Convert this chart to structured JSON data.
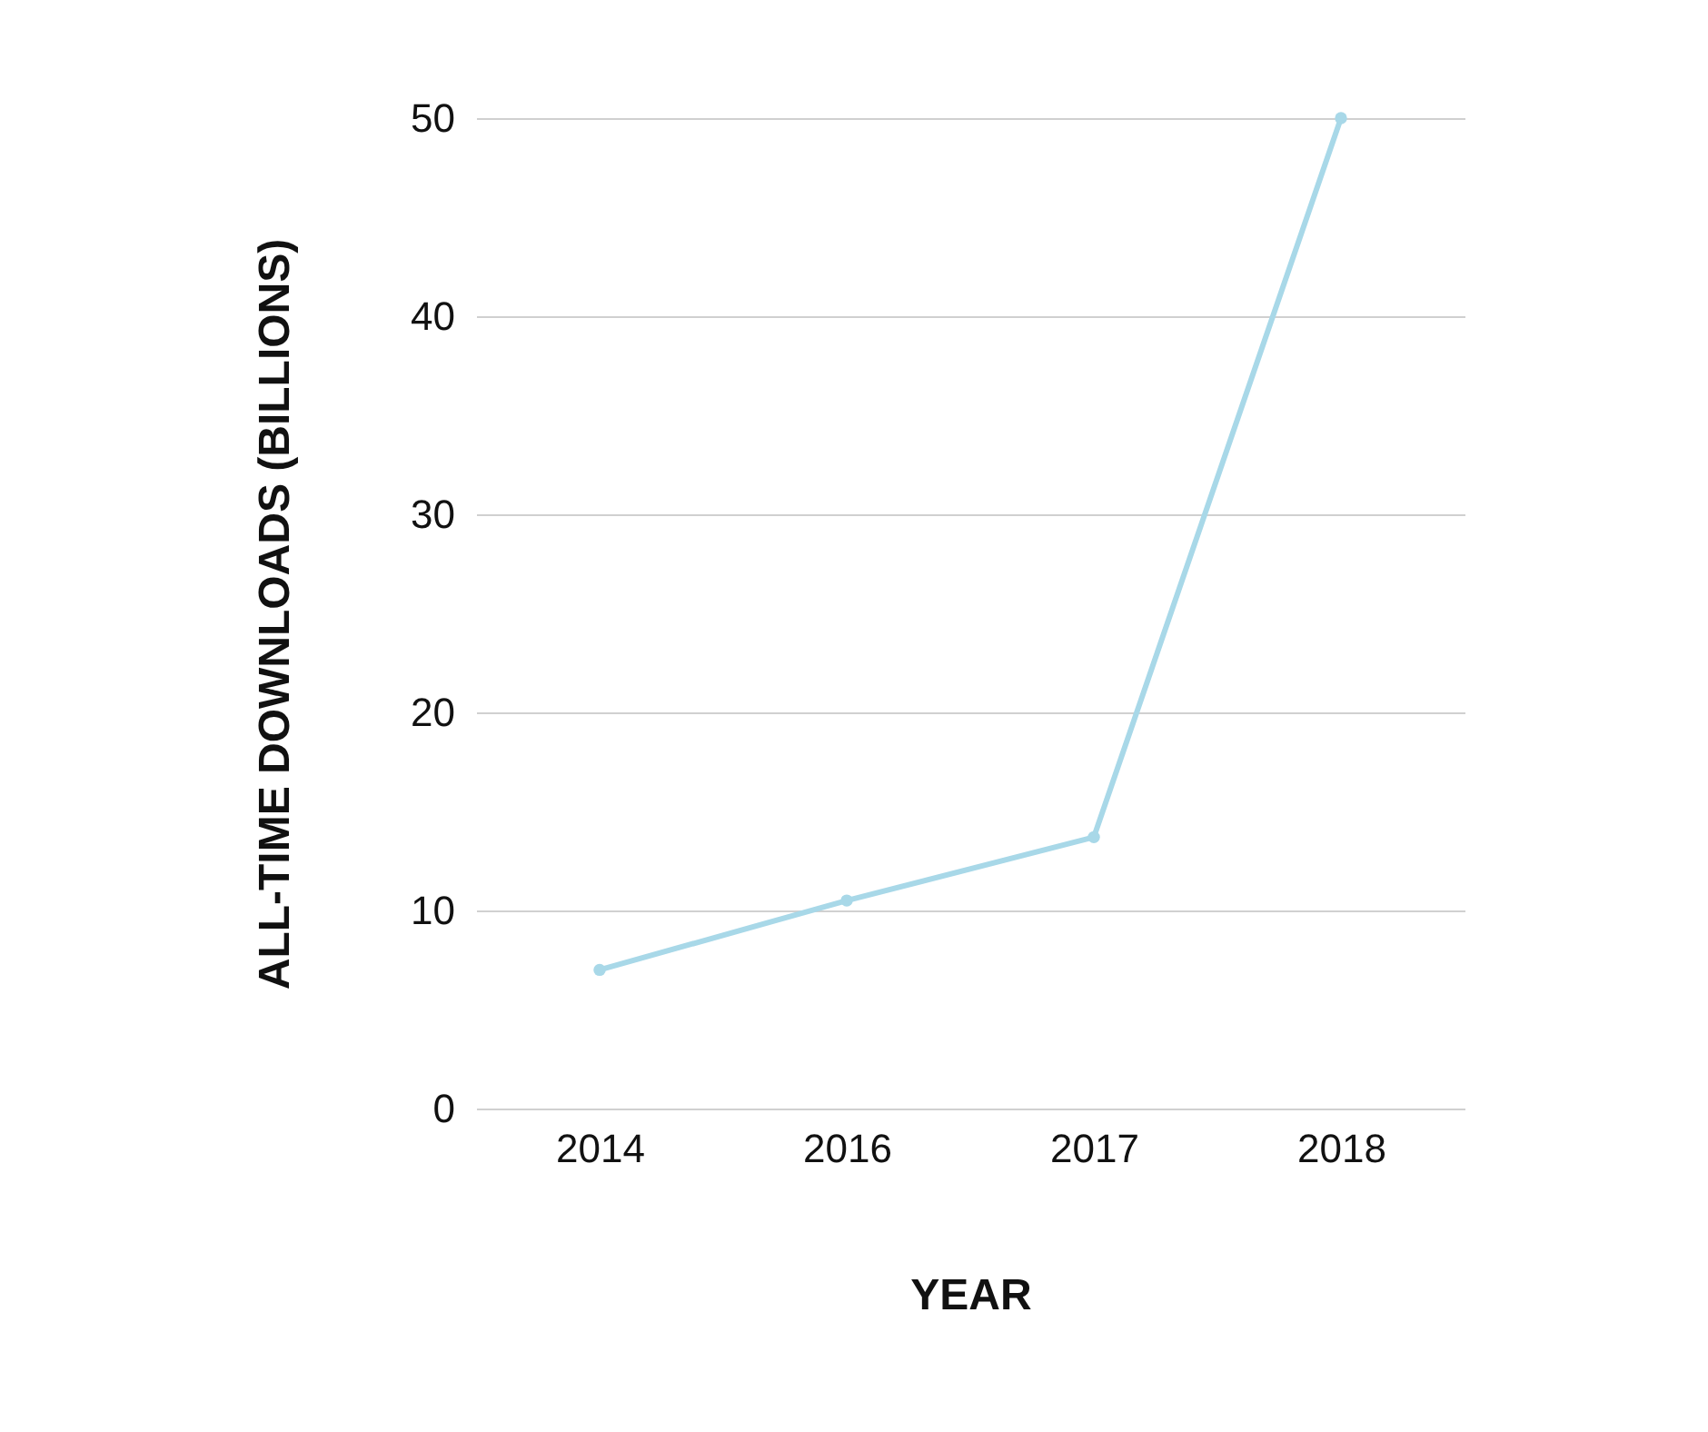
{
  "chart_data": {
    "type": "line",
    "xlabel": "YEAR",
    "ylabel": "ALL-TIME DOWNLOADS (BILLIONS)",
    "categories": [
      "2014",
      "2016",
      "2017",
      "2018"
    ],
    "series": [
      {
        "color": "#a8d8e8",
        "values": [
          7,
          10.5,
          13.7,
          50
        ]
      }
    ],
    "ylim": [
      0,
      50
    ],
    "yticks": [
      0,
      10,
      20,
      30,
      40,
      50
    ],
    "grid": "y",
    "marker": "circle",
    "line_style": "solid"
  }
}
